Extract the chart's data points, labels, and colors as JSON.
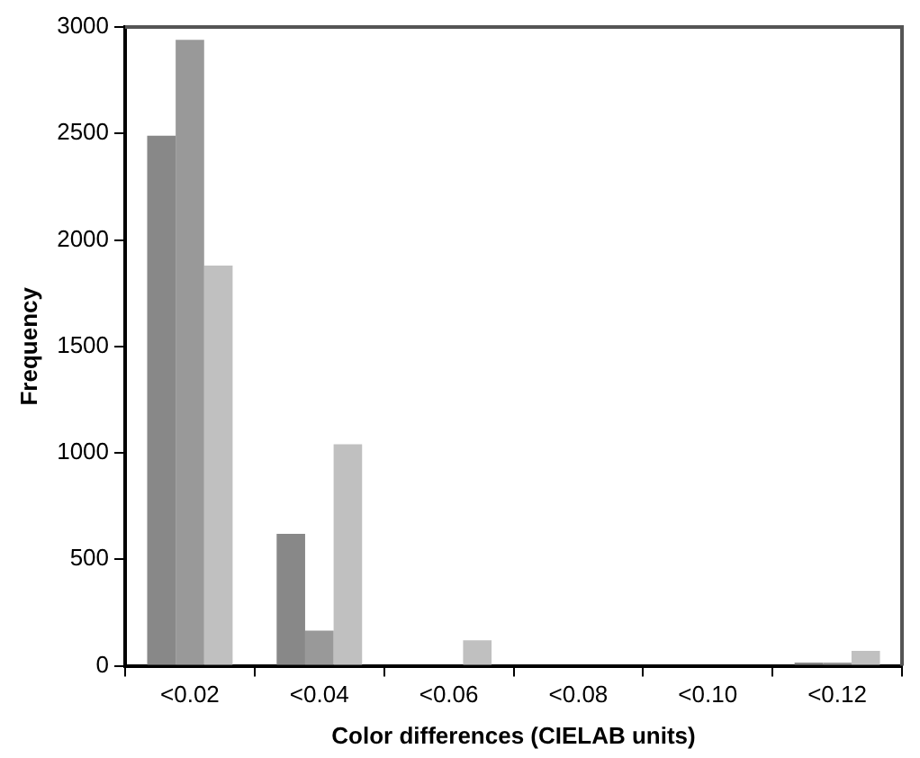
{
  "chart_data": {
    "type": "bar",
    "xlabel": "Color differences (CIELAB units)",
    "ylabel": "Frequency",
    "categories": [
      "<0.02",
      "<0.04",
      "<0.06",
      "<0.08",
      "<0.10",
      "<0.12"
    ],
    "series": [
      {
        "color": "#888888",
        "values": [
          2490,
          620,
          0,
          0,
          0,
          15
        ]
      },
      {
        "color": "#999999",
        "values": [
          2940,
          165,
          0,
          0,
          0,
          15
        ]
      },
      {
        "color": "#c0c0c0",
        "values": [
          1880,
          1040,
          120,
          0,
          0,
          70
        ]
      }
    ],
    "ylim": [
      0,
      3000
    ],
    "yticks": [
      0,
      500,
      1000,
      1500,
      2000,
      2500,
      3000
    ],
    "grid": false,
    "legend": false
  }
}
